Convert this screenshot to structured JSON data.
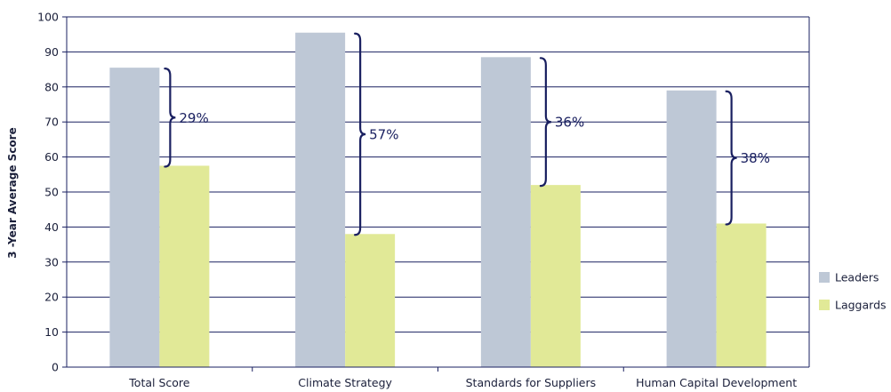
{
  "chart_data": {
    "type": "bar",
    "categories": [
      "Total Score",
      "Climate Strategy",
      "Standards for Suppliers",
      "Human Capital Development"
    ],
    "series": [
      {
        "name": "Leaders",
        "values": [
          85.5,
          95.5,
          88.5,
          79
        ],
        "color": "#bec8d6"
      },
      {
        "name": "Laggards",
        "values": [
          57.5,
          38,
          52,
          41
        ],
        "color": "#e1e997"
      }
    ],
    "gap_labels": [
      "29%",
      "57%",
      "36%",
      "38%"
    ],
    "ylabel": "3 -Year Average Score",
    "ylim": [
      0,
      100
    ],
    "yticks": [
      0,
      10,
      20,
      30,
      40,
      50,
      60,
      70,
      80,
      90,
      100
    ],
    "grid": true,
    "legend_position": "right",
    "colors": {
      "axis": "#1a2060",
      "grid": "#1a2060",
      "brace": "#1a2060"
    }
  }
}
